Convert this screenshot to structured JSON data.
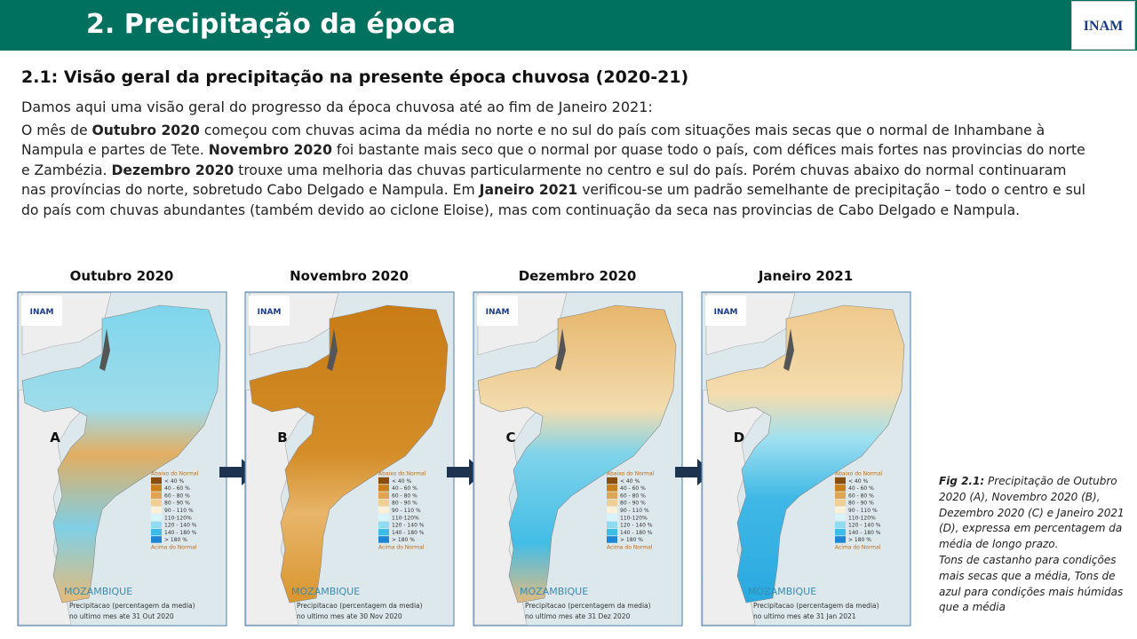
{
  "header": {
    "title": "2. Precipitação da época",
    "logo": "INAM"
  },
  "section": {
    "subtitle": "2.1: Visão geral da precipitação na presente época chuvosa (2020-21)",
    "intro": "Damos aqui uma visão geral do progresso da época chuvosa até ao fim de Janeiro 2021:",
    "paragraph": [
      {
        "text": "O mês de "
      },
      {
        "bold": "Outubro 2020"
      },
      {
        "text": " começou com chuvas acima da média no norte e no sul do país com situações mais secas que o normal de Inhambane à Nampula e partes de Tete. "
      },
      {
        "bold": "Novembro 2020"
      },
      {
        "text": " foi bastante mais seco que o normal por quase todo o país, com défices mais fortes nas provincias do norte e Zambézia. "
      },
      {
        "bold": "Dezembro 2020"
      },
      {
        "text": " trouxe uma melhoria das chuvas particularmente no centro e sul do país. Porém chuvas abaixo do normal continuaram nas províncias do norte, sobretudo Cabo Delgado e Nampula. Em "
      },
      {
        "bold": "Janeiro 2021"
      },
      {
        "text": " verificou-se um padrão semelhante de precipitação – todo o centro e sul do país com chuvas abundantes (também devido ao ciclone Eloise), mas com continuação da seca nas provincias de Cabo Delgado e Nampula."
      }
    ]
  },
  "legend": [
    "Abaixo do Normal",
    "< 40 %",
    "40 - 60 %",
    "60 - 80 %",
    "80 - 90 %",
    "90 - 110 %",
    "110-120%",
    "120 - 140 %",
    "140 - 180 %",
    "> 180 %",
    "Acima do Normal"
  ],
  "panels": [
    {
      "title": "Outubro 2020",
      "letter": "A",
      "country": "MOZAMBIQUE",
      "caption": [
        "Precipitacao (percentagem da media)",
        "no ultimo mes ate 31 Out 2020"
      ]
    },
    {
      "title": "Novembro 2020",
      "letter": "B",
      "country": "MOZAMBIQUE",
      "caption": [
        "Precipitacao (percentagem da media)",
        "no ultimo mes ate 30 Nov 2020"
      ]
    },
    {
      "title": "Dezembro 2020",
      "letter": "C",
      "country": "MOZAMBIQUE",
      "caption": [
        "Precipitacao (percentagem da media)",
        "no ultimo mes ate 31 Dez 2020"
      ]
    },
    {
      "title": "Janeiro 2021",
      "letter": "D",
      "country": "MOZAMBIQUE",
      "caption": [
        "Precipitacao (percentagem da media)",
        "no ultimo mes ate 31 Jan 2021"
      ]
    }
  ],
  "figure_caption": {
    "label": "Fig 2.1:",
    "lines": [
      "Precipitação de Outubro",
      "2020 (A), Novembro 2020 (B),",
      "Dezembro 2020 (C) e Janeiro 2021",
      "(D), expressa em percentagem da",
      "média de longo prazo.",
      "Tons de castanho para condições",
      "mais secas que a média, Tons de",
      "azul para condições mais húmidas",
      "que a média"
    ]
  }
}
